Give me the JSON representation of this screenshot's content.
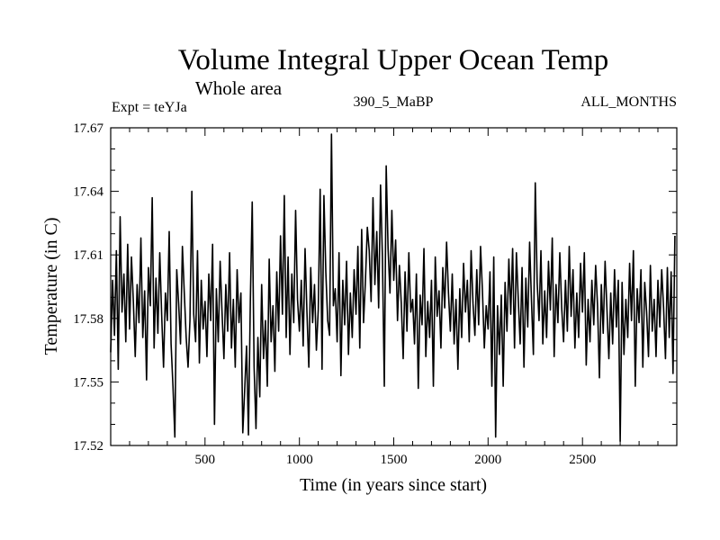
{
  "chart_data": {
    "type": "line",
    "title": "Volume Integral Upper Ocean Temp",
    "subtitle": "Whole area",
    "experiment_label": "Expt = teYJa",
    "period_label": "390_5_MaBP",
    "months_label": "ALL_MONTHS",
    "xlabel": "Time (in years since start)",
    "ylabel": "Temperature (in C)",
    "xlim": [
      0,
      3000
    ],
    "ylim": [
      17.52,
      17.67
    ],
    "x_ticks": [
      500,
      1000,
      1500,
      2000,
      2500
    ],
    "x_tick_labels": [
      "500",
      "1000",
      "1500",
      "2000",
      "2500"
    ],
    "y_ticks": [
      17.52,
      17.55,
      17.58,
      17.61,
      17.64,
      17.67
    ],
    "y_tick_labels": [
      "17.52",
      "17.55",
      "17.58",
      "17.61",
      "17.64",
      "17.67"
    ],
    "grid": false,
    "series": [
      {
        "name": "Volume integral upper ocean temperature",
        "x_start": 0,
        "x_step": 10,
        "values": [
          17.564,
          17.598,
          17.572,
          17.612,
          17.556,
          17.628,
          17.583,
          17.601,
          17.569,
          17.615,
          17.575,
          17.609,
          17.588,
          17.562,
          17.596,
          17.578,
          17.618,
          17.571,
          17.593,
          17.551,
          17.604,
          17.586,
          17.637,
          17.566,
          17.599,
          17.573,
          17.611,
          17.582,
          17.557,
          17.592,
          17.579,
          17.621,
          17.568,
          17.548,
          17.524,
          17.603,
          17.587,
          17.568,
          17.614,
          17.592,
          17.571,
          17.557,
          17.579,
          17.64,
          17.582,
          17.569,
          17.612,
          17.559,
          17.598,
          17.575,
          17.588,
          17.562,
          17.601,
          17.579,
          17.615,
          17.53,
          17.594,
          17.569,
          17.607,
          17.583,
          17.561,
          17.596,
          17.574,
          17.611,
          17.566,
          17.589,
          17.557,
          17.603,
          17.578,
          17.592,
          17.526,
          17.546,
          17.567,
          17.525,
          17.588,
          17.635,
          17.557,
          17.528,
          17.571,
          17.543,
          17.596,
          17.561,
          17.579,
          17.548,
          17.608,
          17.569,
          17.586,
          17.555,
          17.602,
          17.574,
          17.619,
          17.582,
          17.638,
          17.571,
          17.609,
          17.563,
          17.601,
          17.578,
          17.631,
          17.589,
          17.574,
          17.598,
          17.567,
          17.613,
          17.583,
          17.557,
          17.604,
          17.578,
          17.596,
          17.565,
          17.584,
          17.641,
          17.556,
          17.638,
          17.602,
          17.579,
          17.572,
          17.667,
          17.586,
          17.594,
          17.569,
          17.611,
          17.553,
          17.598,
          17.577,
          17.607,
          17.563,
          17.592,
          17.571,
          17.603,
          17.582,
          17.614,
          17.566,
          17.622,
          17.578,
          17.598,
          17.623,
          17.612,
          17.588,
          17.637,
          17.596,
          17.621,
          17.585,
          17.643,
          17.609,
          17.548,
          17.652,
          17.613,
          17.592,
          17.631,
          17.598,
          17.617,
          17.579,
          17.605,
          17.587,
          17.561,
          17.602,
          17.574,
          17.611,
          17.583,
          17.589,
          17.568,
          17.601,
          17.547,
          17.591,
          17.577,
          17.613,
          17.562,
          17.588,
          17.571,
          17.598,
          17.548,
          17.609,
          17.581,
          17.593,
          17.566,
          17.604,
          17.585,
          17.616,
          17.592,
          17.574,
          17.601,
          17.568,
          17.589,
          17.556,
          17.594,
          17.571,
          17.606,
          17.583,
          17.598,
          17.569,
          17.612,
          17.587,
          17.572,
          17.603,
          17.577,
          17.614,
          17.593,
          17.566,
          17.586,
          17.575,
          17.602,
          17.548,
          17.609,
          17.524,
          17.586,
          17.563,
          17.591,
          17.548,
          17.597,
          17.574,
          17.608,
          17.582,
          17.613,
          17.566,
          17.611,
          17.589,
          17.568,
          17.604,
          17.557,
          17.599,
          17.576,
          17.616,
          17.588,
          17.563,
          17.644,
          17.597,
          17.579,
          17.612,
          17.568,
          17.593,
          17.571,
          17.607,
          17.584,
          17.618,
          17.562,
          17.596,
          17.578,
          17.611,
          17.585,
          17.569,
          17.598,
          17.574,
          17.614,
          17.581,
          17.603,
          17.566,
          17.592,
          17.571,
          17.606,
          17.583,
          17.611,
          17.558,
          17.589,
          17.569,
          17.598,
          17.577,
          17.605,
          17.586,
          17.552,
          17.596,
          17.573,
          17.607,
          17.584,
          17.561,
          17.592,
          17.568,
          17.603,
          17.576,
          17.598,
          17.522,
          17.597,
          17.563,
          17.589,
          17.571,
          17.606,
          17.579,
          17.612,
          17.548,
          17.594,
          17.578,
          17.603,
          17.557,
          17.597,
          17.583,
          17.562,
          17.605,
          17.574,
          17.589,
          17.562,
          17.598,
          17.576,
          17.603,
          17.585,
          17.561,
          17.604,
          17.571,
          17.602,
          17.554,
          17.619
        ]
      }
    ]
  }
}
